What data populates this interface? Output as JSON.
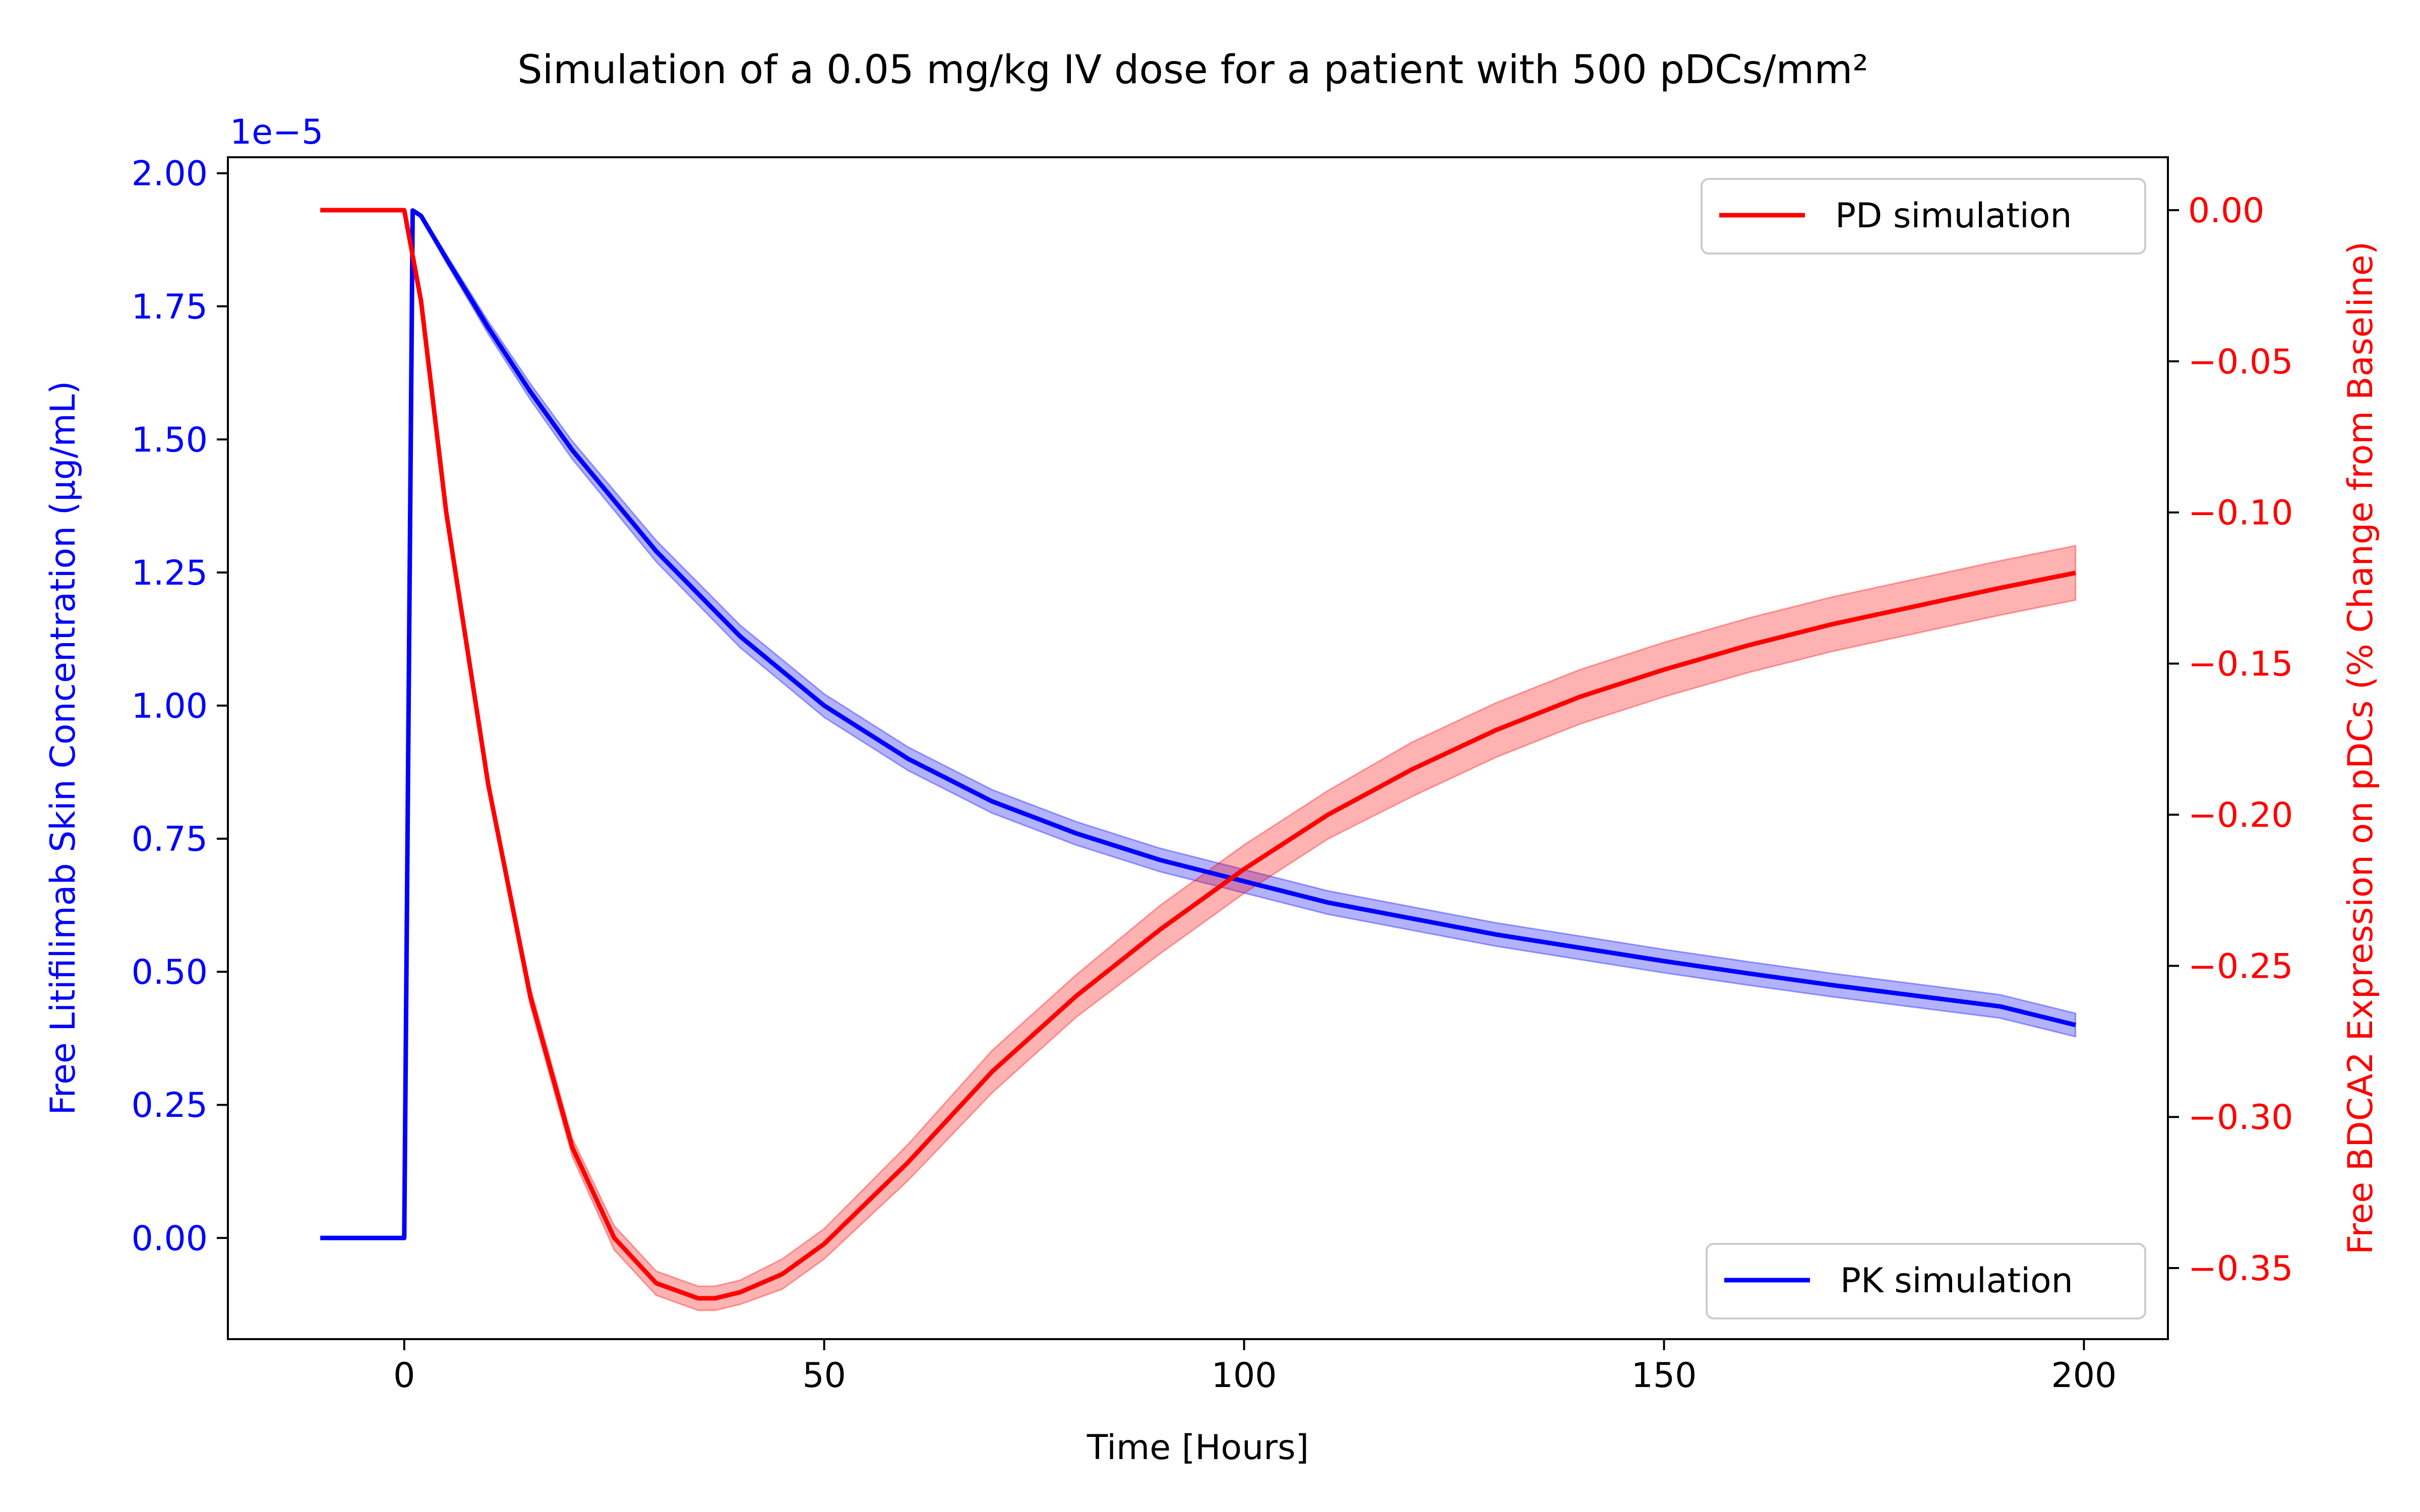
{
  "chart_data": {
    "type": "line",
    "title": "Simulation of a 0.05 mg/kg IV dose for a patient with 500 pDCs/mm²",
    "xlabel": "Time [Hours]",
    "xlim": [
      -21,
      210
    ],
    "x_ticks": [
      0,
      50,
      100,
      150,
      200
    ],
    "x_tick_labels": [
      "0",
      "50",
      "100",
      "150",
      "200"
    ],
    "y_left": {
      "label": "Free Litifilimab Skin Concentration (µg/mL)",
      "color": "#0000ff",
      "offset_text": "1e−5",
      "ylim": [
        -0.19,
        2.03
      ],
      "ticks": [
        0.0,
        0.25,
        0.5,
        0.75,
        1.0,
        1.25,
        1.5,
        1.75,
        2.0
      ],
      "tick_labels": [
        "0.00",
        "0.25",
        "0.50",
        "0.75",
        "1.00",
        "1.25",
        "1.50",
        "1.75",
        "2.00"
      ]
    },
    "y_right": {
      "label": "Free BDCA2 Expression on pDCs (% Change from Baseline)",
      "color": "#ff0000",
      "ylim": [
        -0.3735,
        0.0175
      ],
      "ticks": [
        0.0,
        -0.05,
        -0.1,
        -0.15,
        -0.2,
        -0.25,
        -0.3,
        -0.35
      ],
      "tick_labels": [
        "0.00",
        "−0.05",
        "−0.10",
        "−0.15",
        "−0.20",
        "−0.25",
        "−0.30",
        "−0.35"
      ]
    },
    "legend": [
      {
        "label": "PD simulation",
        "color": "#ff0000",
        "placement": "upper right"
      },
      {
        "label": "PK simulation",
        "color": "#0000ff",
        "placement": "lower right"
      }
    ],
    "series": [
      {
        "name": "PK simulation",
        "axis": "left",
        "color": "#0000ff",
        "band_color": "#0000ff",
        "x": [
          -10,
          0,
          1,
          2,
          5,
          10,
          15,
          20,
          30,
          40,
          50,
          60,
          70,
          80,
          90,
          100,
          110,
          120,
          130,
          140,
          150,
          160,
          170,
          180,
          190,
          199
        ],
        "y": [
          0,
          0,
          1.93,
          1.92,
          1.84,
          1.71,
          1.59,
          1.48,
          1.29,
          1.13,
          1.0,
          0.9,
          0.82,
          0.76,
          0.71,
          0.67,
          0.63,
          0.6,
          0.57,
          0.545,
          0.52,
          0.497,
          0.475,
          0.455,
          0.435,
          0.4
        ],
        "band_half_width": [
          0,
          0,
          0.0,
          0.003,
          0.008,
          0.012,
          0.015,
          0.017,
          0.02,
          0.021,
          0.022,
          0.022,
          0.022,
          0.022,
          0.022,
          0.022,
          0.022,
          0.022,
          0.022,
          0.022,
          0.022,
          0.022,
          0.022,
          0.022,
          0.022,
          0.022
        ]
      },
      {
        "name": "PD simulation",
        "axis": "right",
        "color": "#ff0000",
        "band_color": "#ff0000",
        "x": [
          -10,
          0,
          2,
          5,
          10,
          15,
          20,
          25,
          30,
          35,
          37,
          40,
          45,
          50,
          60,
          70,
          80,
          90,
          100,
          110,
          120,
          130,
          140,
          150,
          160,
          170,
          180,
          190,
          199
        ],
        "y": [
          0,
          0,
          -0.03,
          -0.1,
          -0.19,
          -0.26,
          -0.31,
          -0.34,
          -0.355,
          -0.36,
          -0.36,
          -0.358,
          -0.352,
          -0.342,
          -0.315,
          -0.285,
          -0.26,
          -0.238,
          -0.218,
          -0.2,
          -0.185,
          -0.172,
          -0.161,
          -0.152,
          -0.144,
          -0.137,
          -0.131,
          -0.125,
          -0.12
        ],
        "band_half_width": [
          0,
          0,
          0.0,
          0.001,
          0.002,
          0.003,
          0.003,
          0.004,
          0.004,
          0.004,
          0.004,
          0.004,
          0.005,
          0.005,
          0.006,
          0.007,
          0.007,
          0.008,
          0.008,
          0.008,
          0.009,
          0.009,
          0.009,
          0.009,
          0.009,
          0.009,
          0.009,
          0.009,
          0.009
        ]
      }
    ],
    "grid": false
  }
}
